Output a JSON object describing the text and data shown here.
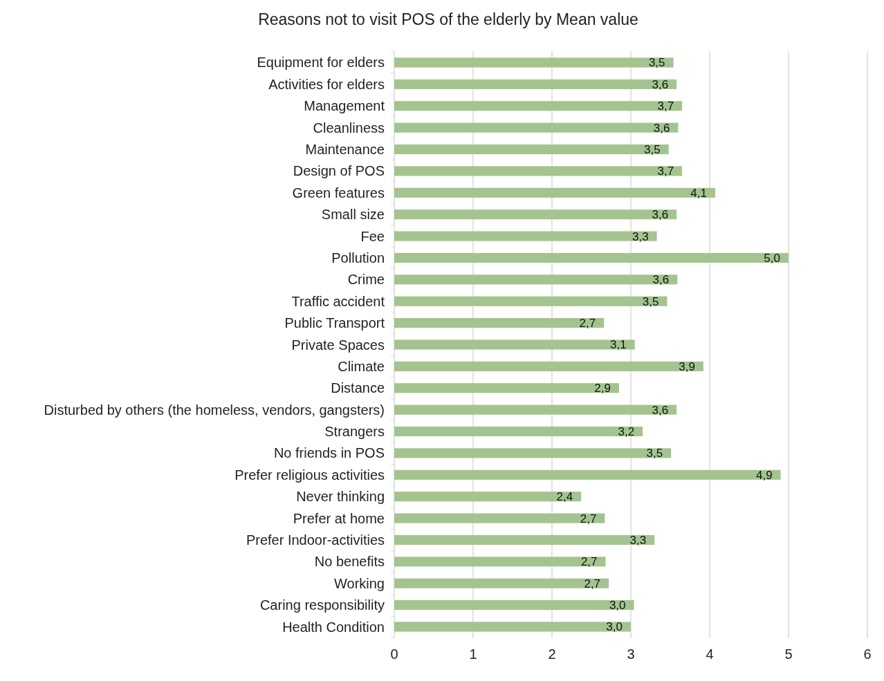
{
  "chart_data": {
    "type": "bar",
    "orientation": "horizontal",
    "title": "Reasons not to visit POS of the elderly by Mean value",
    "categories": [
      "Equipment for elders",
      "Activities for elders",
      "Management",
      "Cleanliness",
      "Maintenance",
      "Design of POS",
      "Green features",
      "Small size",
      "Fee",
      "Pollution",
      "Crime",
      "Traffic accident",
      "Public Transport",
      "Private Spaces",
      "Climate",
      "Distance",
      "Disturbed by others (the homeless, vendors, gangsters)",
      "Strangers",
      "No friends in POS",
      "Prefer religious activities",
      "Never thinking",
      "Prefer at home",
      "Prefer Indoor-activities",
      "No benefits",
      "Working",
      "Caring responsibility",
      "Health Condition"
    ],
    "values": [
      3.54,
      3.58,
      3.65,
      3.6,
      3.48,
      3.65,
      4.07,
      3.58,
      3.33,
      5.0,
      3.59,
      3.46,
      2.66,
      3.05,
      3.92,
      2.85,
      3.58,
      3.15,
      3.51,
      4.9,
      2.37,
      2.67,
      3.3,
      2.68,
      2.72,
      3.04,
      3.0
    ],
    "value_labels": [
      "3,5",
      "3,6",
      "3,7",
      "3,6",
      "3,5",
      "3,7",
      "4,1",
      "3,6",
      "3,3",
      "5,0",
      "3,6",
      "3,5",
      "2,7",
      "3,1",
      "3,9",
      "2,9",
      "3,6",
      "3,2",
      "3,5",
      "4,9",
      "2,4",
      "2,7",
      "3,3",
      "2,7",
      "2,7",
      "3,0",
      "3,0"
    ],
    "color": "#a3c48f",
    "xlim": [
      0,
      6
    ],
    "xticks": [
      0,
      1,
      2,
      3,
      4,
      5,
      6
    ],
    "grid": "x"
  }
}
